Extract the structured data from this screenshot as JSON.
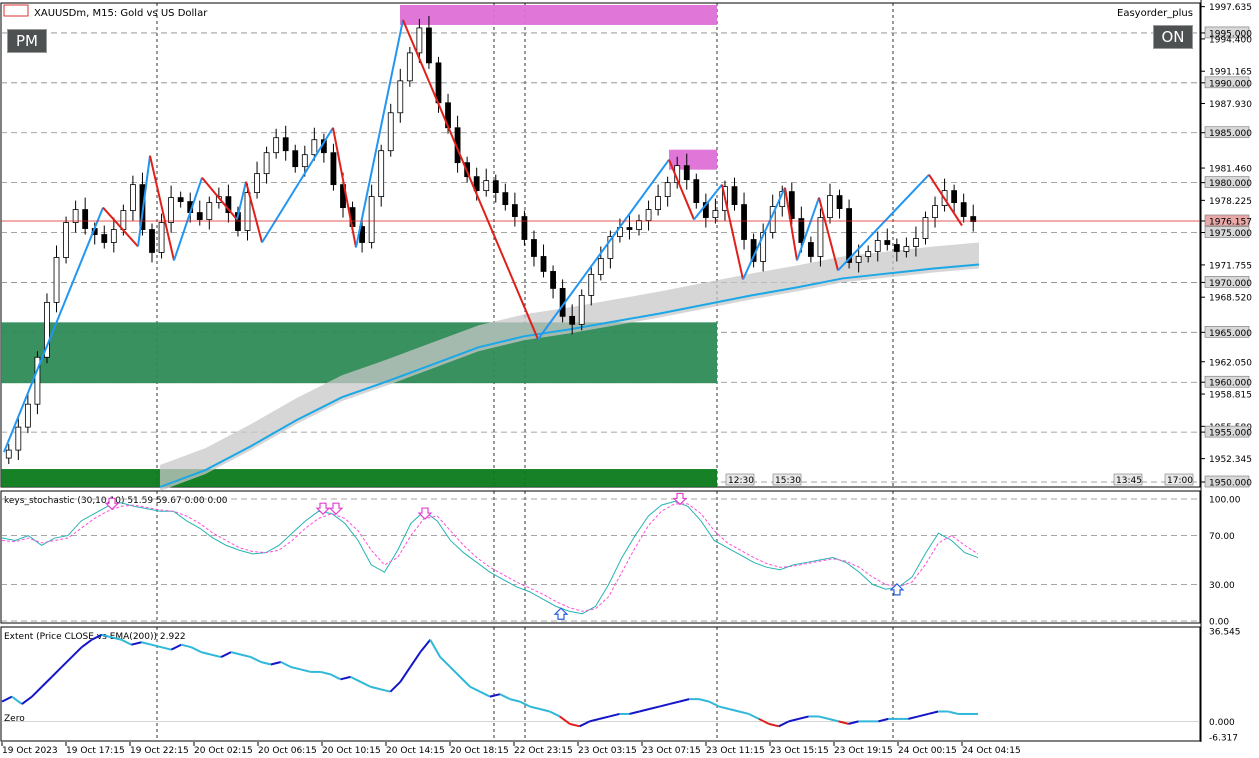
{
  "window": {
    "symbol_title": "XAUUSDm, M15:  Gold vs US Dollar",
    "expert_name": "Easyorder_plus",
    "pm_button": "PM",
    "on_button": "ON"
  },
  "chart_data": [
    {
      "type": "candlestick",
      "title": "XAUUSDm, M15:  Gold vs US Dollar",
      "ylim": [
        1949.5,
        1998.0
      ],
      "price_scale_ticks": [
        "1997.635",
        "1995.000",
        "1994.400",
        "1991.165",
        "1990.000",
        "1987.930",
        "1985.000",
        "1981.460",
        "1980.000",
        "1978.225",
        "1976.157",
        "1975.000",
        "1971.755",
        "1970.000",
        "1968.520",
        "1965.000",
        "1962.050",
        "1960.000",
        "1958.815",
        "1955.580",
        "1955.000",
        "1952.345",
        "1950.000"
      ],
      "current_price": "1976.157",
      "time_labels": [
        "12:30",
        "15:30",
        "13:45",
        "17:00"
      ],
      "zones": [
        {
          "name": "supply",
          "from": 1995.8,
          "to": 1997.8,
          "color": "#dd6fd6"
        },
        {
          "name": "supply-small",
          "from": 1981.3,
          "to": 1983.3,
          "color": "#dd6fd6"
        },
        {
          "name": "demand",
          "from": 1959.9,
          "to": 1966.0,
          "color": "#2e8b57"
        },
        {
          "name": "demand-low",
          "from": 1949.5,
          "to": 1951.3,
          "color": "#0b7a1c"
        }
      ],
      "close_path": [
        1953.2,
        1955.5,
        1957.8,
        1962.5,
        1968.0,
        1972.5,
        1976.0,
        1977.3,
        1975.4,
        1974.8,
        1974.0,
        1975.3,
        1977.2,
        1979.8,
        1975.3,
        1973.0,
        1976.0,
        1978.5,
        1978.1,
        1977.0,
        1976.3,
        1978.0,
        1978.6,
        1977.0,
        1975.2,
        1979.0,
        1980.9,
        1983.0,
        1984.5,
        1983.2,
        1981.6,
        1982.8,
        1984.3,
        1983.0,
        1979.8,
        1977.5,
        1975.6,
        1974.0,
        1978.6,
        1983.2,
        1987.0,
        1990.2,
        1993.0,
        1995.5,
        1992.0,
        1988.0,
        1985.5,
        1982.0,
        1980.6,
        1979.2,
        1980.2,
        1979.0,
        1977.8,
        1976.6,
        1974.3,
        1972.6,
        1971.1,
        1969.4,
        1966.6,
        1965.8,
        1968.7,
        1970.8,
        1972.4,
        1974.6,
        1975.5,
        1975.3,
        1976.2,
        1977.3,
        1978.6,
        1980.0,
        1981.7,
        1980.3,
        1978.0,
        1976.5,
        1977.2,
        1979.6,
        1977.8,
        1974.3,
        1972.1,
        1975.0,
        1977.6,
        1979.1,
        1976.4,
        1974.0,
        1972.6,
        1976.5,
        1978.7,
        1977.4,
        1972.0,
        1972.6,
        1973.1,
        1974.2,
        1973.8,
        1973.1,
        1973.6,
        1974.4,
        1976.5,
        1977.7,
        1979.2,
        1978.0,
        1976.6,
        1976.1
      ],
      "zigzag": [
        {
          "x": "19 Oct 2023",
          "y": 1953.0
        },
        {
          "x": "19 Oct 17:15",
          "y": 1977.5
        },
        {
          "x": "19 Oct 20:30",
          "y": 1973.6
        },
        {
          "x": "19 Oct 22:15",
          "y": 1982.7
        },
        {
          "x": "19 Oct 23:15",
          "y": 1972.2
        },
        {
          "x": "20 Oct 01:30",
          "y": 1980.5
        },
        {
          "x": "20 Oct 04:15",
          "y": 1976.3
        },
        {
          "x": "20 Oct 05:15",
          "y": 1980.1
        },
        {
          "x": "20 Oct 06:30",
          "y": 1974.0
        },
        {
          "x": "20 Oct 09:15",
          "y": 1985.5
        },
        {
          "x": "20 Oct 11:00",
          "y": 1973.5
        },
        {
          "x": "20 Oct 14:15",
          "y": 1996.3
        },
        {
          "x": "22 Oct 23:15",
          "y": 1964.3
        },
        {
          "x": "23 Oct 07:15",
          "y": 1982.3
        },
        {
          "x": "23 Oct 08:30",
          "y": 1976.3
        },
        {
          "x": "23 Oct 10:15",
          "y": 1979.8
        },
        {
          "x": "23 Oct 11:15",
          "y": 1970.3
        },
        {
          "x": "23 Oct 13:45",
          "y": 1979.5
        },
        {
          "x": "23 Oct 15:15",
          "y": 1972.2
        },
        {
          "x": "23 Oct 16:45",
          "y": 1978.5
        },
        {
          "x": "23 Oct 17:30",
          "y": 1971.2
        },
        {
          "x": "24 Oct 00:45",
          "y": 1980.8
        },
        {
          "x": "24 Oct 04:00",
          "y": 1975.7
        }
      ],
      "ema_line": [
        1949.5,
        1951.2,
        1953.6,
        1956.2,
        1958.5,
        1960.1,
        1961.8,
        1963.5,
        1964.6,
        1965.3,
        1966.1,
        1966.9,
        1967.8,
        1968.7,
        1969.5,
        1970.4,
        1970.9,
        1971.4,
        1971.8
      ],
      "x_ticks": [
        "19 Oct 2023",
        "19 Oct 17:15",
        "19 Oct 22:15",
        "20 Oct 02:15",
        "20 Oct 06:15",
        "20 Oct 10:15",
        "20 Oct 14:15",
        "20 Oct 18:15",
        "22 Oct 23:15",
        "23 Oct 03:15",
        "23 Oct 07:15",
        "23 Oct 11:15",
        "23 Oct 15:15",
        "23 Oct 19:15",
        "24 Oct 00:15",
        "24 Oct 04:15"
      ]
    },
    {
      "type": "line",
      "title": "keys_stochastic (30,10,10) 51.59 59.67 0.00 0.00",
      "ylim": [
        0,
        100
      ],
      "y_ticks": [
        "100.00",
        "70.00",
        "30.00",
        "0.00"
      ],
      "series": [
        {
          "values": [
            68,
            66,
            70,
            62,
            68,
            70,
            82,
            88,
            94,
            97,
            94,
            92,
            90,
            90,
            82,
            76,
            68,
            62,
            58,
            55,
            56,
            62,
            72,
            82,
            90,
            88,
            80,
            66,
            46,
            40,
            58,
            80,
            90,
            82,
            66,
            56,
            48,
            40,
            34,
            28,
            24,
            18,
            12,
            8,
            6,
            12,
            30,
            52,
            70,
            86,
            95,
            98,
            94,
            82,
            66,
            60,
            54,
            48,
            44,
            42,
            46,
            48,
            50,
            52,
            48,
            40,
            30,
            26,
            28,
            36,
            55,
            72,
            66,
            56,
            52
          ]
        },
        {
          "values": [
            66,
            65,
            68,
            64,
            66,
            68,
            76,
            84,
            90,
            94,
            95,
            93,
            91,
            90,
            86,
            80,
            72,
            66,
            60,
            57,
            56,
            58,
            66,
            76,
            84,
            88,
            84,
            74,
            58,
            46,
            52,
            70,
            84,
            86,
            74,
            62,
            52,
            44,
            38,
            32,
            27,
            22,
            16,
            11,
            8,
            10,
            20,
            40,
            60,
            78,
            90,
            96,
            96,
            88,
            74,
            64,
            58,
            52,
            47,
            44,
            45,
            47,
            49,
            51,
            49,
            44,
            36,
            30,
            28,
            32,
            46,
            64,
            70,
            62,
            55
          ]
        }
      ],
      "signals": [
        {
          "x": "19 Oct 20:30",
          "dir": "down",
          "value": 94
        },
        {
          "x": "20 Oct 09:15",
          "dir": "down",
          "value": 90
        },
        {
          "x": "20 Oct 09:45",
          "dir": "down",
          "value": 90
        },
        {
          "x": "20 Oct 14:45",
          "dir": "down",
          "value": 86
        },
        {
          "x": "22 Oct 23:45",
          "dir": "up",
          "value": 8
        },
        {
          "x": "23 Oct 07:45",
          "dir": "down",
          "value": 98
        },
        {
          "x": "23 Oct 20:15",
          "dir": "up",
          "value": 28
        }
      ]
    },
    {
      "type": "line",
      "title": "Extent (Price CLOSE vs EMA(200)) 2.922",
      "ylim": [
        -6.317,
        36.545
      ],
      "y_ticks": [
        "36.545",
        "0.000",
        "-6.317"
      ],
      "zero_label": "Zero",
      "values": [
        8,
        10,
        7,
        10,
        14,
        18,
        22,
        26,
        30,
        33,
        35,
        34,
        33,
        31,
        32,
        31,
        30,
        29,
        31,
        30,
        28,
        27,
        26,
        28,
        27,
        26,
        24,
        23,
        24,
        22,
        21,
        20,
        20,
        19,
        17,
        18,
        16,
        14,
        13,
        12,
        16,
        22,
        28,
        33,
        26,
        22,
        18,
        14,
        12,
        10,
        11,
        9,
        8,
        6,
        5,
        4,
        2,
        -1,
        -2,
        0,
        1,
        2,
        3,
        3,
        4,
        5,
        6,
        7,
        8,
        9,
        9,
        8,
        6,
        5,
        4,
        3,
        1,
        -1,
        -2,
        0,
        1,
        2,
        2,
        1,
        0,
        -1,
        0,
        0,
        0,
        1,
        1,
        1,
        2,
        3,
        4,
        4,
        3,
        3,
        3
      ]
    }
  ]
}
